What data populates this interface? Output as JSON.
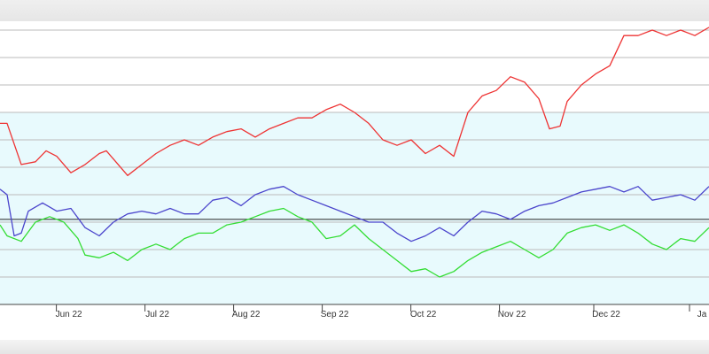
{
  "chart_data": {
    "type": "line",
    "title": "",
    "xlabel": "",
    "ylabel": "",
    "grid": true,
    "ylim": [
      0,
      10
    ],
    "x_tick_labels": [
      "Jun 22",
      "Jul 22",
      "Aug 22",
      "Sep 22",
      "Oct 22",
      "Nov 22",
      "Dec 22",
      "Ja"
    ],
    "colors": {
      "red": "#ee3333",
      "blue": "#4a44cc",
      "green": "#33dd33",
      "baseline": "#222222",
      "band": "#e8fafd",
      "grid": "#bbbbbb"
    },
    "baseline_value": 3.1,
    "series": [
      {
        "color": "#ee3333",
        "points": [
          [
            0,
            6.6
          ],
          [
            0.01,
            6.6
          ],
          [
            0.03,
            5.1
          ],
          [
            0.05,
            5.2
          ],
          [
            0.065,
            5.6
          ],
          [
            0.08,
            5.4
          ],
          [
            0.1,
            4.8
          ],
          [
            0.12,
            5.1
          ],
          [
            0.14,
            5.5
          ],
          [
            0.15,
            5.6
          ],
          [
            0.16,
            5.3
          ],
          [
            0.18,
            4.7
          ],
          [
            0.2,
            5.1
          ],
          [
            0.22,
            5.5
          ],
          [
            0.24,
            5.8
          ],
          [
            0.26,
            6.0
          ],
          [
            0.28,
            5.8
          ],
          [
            0.3,
            6.1
          ],
          [
            0.32,
            6.3
          ],
          [
            0.34,
            6.4
          ],
          [
            0.36,
            6.1
          ],
          [
            0.38,
            6.4
          ],
          [
            0.4,
            6.6
          ],
          [
            0.42,
            6.8
          ],
          [
            0.44,
            6.8
          ],
          [
            0.46,
            7.1
          ],
          [
            0.48,
            7.3
          ],
          [
            0.5,
            7.0
          ],
          [
            0.52,
            6.6
          ],
          [
            0.54,
            6.0
          ],
          [
            0.56,
            5.8
          ],
          [
            0.58,
            6.0
          ],
          [
            0.6,
            5.5
          ],
          [
            0.62,
            5.8
          ],
          [
            0.64,
            5.4
          ],
          [
            0.66,
            7.0
          ],
          [
            0.68,
            7.6
          ],
          [
            0.7,
            7.8
          ],
          [
            0.72,
            8.3
          ],
          [
            0.74,
            8.1
          ],
          [
            0.76,
            7.5
          ],
          [
            0.775,
            6.4
          ],
          [
            0.79,
            6.5
          ],
          [
            0.8,
            7.4
          ],
          [
            0.82,
            8.0
          ],
          [
            0.84,
            8.4
          ],
          [
            0.86,
            8.7
          ],
          [
            0.88,
            9.8
          ],
          [
            0.9,
            9.8
          ],
          [
            0.92,
            10.0
          ],
          [
            0.94,
            9.8
          ],
          [
            0.96,
            10.0
          ],
          [
            0.98,
            9.8
          ],
          [
            1.0,
            10.1
          ]
        ]
      },
      {
        "color": "#4a44cc",
        "points": [
          [
            0,
            4.2
          ],
          [
            0.01,
            4.0
          ],
          [
            0.02,
            2.5
          ],
          [
            0.03,
            2.6
          ],
          [
            0.04,
            3.4
          ],
          [
            0.06,
            3.7
          ],
          [
            0.08,
            3.4
          ],
          [
            0.1,
            3.5
          ],
          [
            0.12,
            2.8
          ],
          [
            0.14,
            2.5
          ],
          [
            0.16,
            3.0
          ],
          [
            0.18,
            3.3
          ],
          [
            0.2,
            3.4
          ],
          [
            0.22,
            3.3
          ],
          [
            0.24,
            3.5
          ],
          [
            0.26,
            3.3
          ],
          [
            0.28,
            3.3
          ],
          [
            0.3,
            3.8
          ],
          [
            0.32,
            3.9
          ],
          [
            0.34,
            3.6
          ],
          [
            0.36,
            4.0
          ],
          [
            0.38,
            4.2
          ],
          [
            0.4,
            4.3
          ],
          [
            0.42,
            4.0
          ],
          [
            0.44,
            3.8
          ],
          [
            0.46,
            3.6
          ],
          [
            0.48,
            3.4
          ],
          [
            0.5,
            3.2
          ],
          [
            0.52,
            3.0
          ],
          [
            0.54,
            3.0
          ],
          [
            0.56,
            2.6
          ],
          [
            0.58,
            2.3
          ],
          [
            0.6,
            2.5
          ],
          [
            0.62,
            2.8
          ],
          [
            0.64,
            2.5
          ],
          [
            0.66,
            3.0
          ],
          [
            0.68,
            3.4
          ],
          [
            0.7,
            3.3
          ],
          [
            0.72,
            3.1
          ],
          [
            0.74,
            3.4
          ],
          [
            0.76,
            3.6
          ],
          [
            0.78,
            3.7
          ],
          [
            0.8,
            3.9
          ],
          [
            0.82,
            4.1
          ],
          [
            0.84,
            4.2
          ],
          [
            0.86,
            4.3
          ],
          [
            0.88,
            4.1
          ],
          [
            0.9,
            4.3
          ],
          [
            0.92,
            3.8
          ],
          [
            0.94,
            3.9
          ],
          [
            0.96,
            4.0
          ],
          [
            0.98,
            3.8
          ],
          [
            1.0,
            4.3
          ]
        ]
      },
      {
        "color": "#33dd33",
        "points": [
          [
            0,
            2.9
          ],
          [
            0.01,
            2.5
          ],
          [
            0.03,
            2.3
          ],
          [
            0.05,
            3.0
          ],
          [
            0.07,
            3.2
          ],
          [
            0.09,
            3.0
          ],
          [
            0.11,
            2.4
          ],
          [
            0.12,
            1.8
          ],
          [
            0.14,
            1.7
          ],
          [
            0.16,
            1.9
          ],
          [
            0.18,
            1.6
          ],
          [
            0.2,
            2.0
          ],
          [
            0.22,
            2.2
          ],
          [
            0.24,
            2.0
          ],
          [
            0.26,
            2.4
          ],
          [
            0.28,
            2.6
          ],
          [
            0.3,
            2.6
          ],
          [
            0.32,
            2.9
          ],
          [
            0.34,
            3.0
          ],
          [
            0.36,
            3.2
          ],
          [
            0.38,
            3.4
          ],
          [
            0.4,
            3.5
          ],
          [
            0.42,
            3.2
          ],
          [
            0.44,
            3.0
          ],
          [
            0.46,
            2.4
          ],
          [
            0.48,
            2.5
          ],
          [
            0.5,
            2.9
          ],
          [
            0.52,
            2.4
          ],
          [
            0.54,
            2.0
          ],
          [
            0.56,
            1.6
          ],
          [
            0.58,
            1.2
          ],
          [
            0.6,
            1.3
          ],
          [
            0.62,
            1.0
          ],
          [
            0.64,
            1.2
          ],
          [
            0.66,
            1.6
          ],
          [
            0.68,
            1.9
          ],
          [
            0.7,
            2.1
          ],
          [
            0.72,
            2.3
          ],
          [
            0.74,
            2.0
          ],
          [
            0.76,
            1.7
          ],
          [
            0.78,
            2.0
          ],
          [
            0.8,
            2.6
          ],
          [
            0.82,
            2.8
          ],
          [
            0.84,
            2.9
          ],
          [
            0.86,
            2.7
          ],
          [
            0.88,
            2.9
          ],
          [
            0.9,
            2.6
          ],
          [
            0.92,
            2.2
          ],
          [
            0.94,
            2.0
          ],
          [
            0.96,
            2.4
          ],
          [
            0.98,
            2.3
          ],
          [
            1.0,
            2.8
          ]
        ]
      }
    ]
  }
}
